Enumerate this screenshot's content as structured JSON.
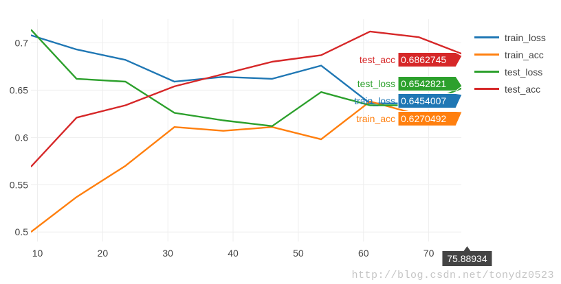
{
  "chart_data": {
    "type": "line",
    "xlim": [
      9,
      75
    ],
    "ylim": [
      0.49,
      0.725
    ],
    "x_ticks": [
      10,
      20,
      30,
      40,
      50,
      60,
      70
    ],
    "y_ticks": [
      0.5,
      0.55,
      0.6,
      0.65,
      0.7
    ],
    "y_tick_labels": [
      "0.5",
      "0.55",
      "0.6",
      "0.65",
      "0.7"
    ],
    "grid": true,
    "legend_position": "right",
    "series": [
      {
        "name": "train_loss",
        "color": "#1f77b4",
        "x": [
          9,
          16,
          23.5,
          31,
          38.5,
          46,
          53.5,
          61,
          68.5,
          75.89
        ],
        "y": [
          0.708,
          0.693,
          0.682,
          0.659,
          0.664,
          0.662,
          0.676,
          0.636,
          0.636,
          0.6454007
        ]
      },
      {
        "name": "train_acc",
        "color": "#ff7f0e",
        "x": [
          9,
          16,
          23.5,
          31,
          38.5,
          46,
          53.5,
          61,
          68.5,
          75.89
        ],
        "y": [
          0.5,
          0.537,
          0.57,
          0.611,
          0.607,
          0.611,
          0.598,
          0.638,
          0.624,
          0.6270492
        ]
      },
      {
        "name": "test_loss",
        "color": "#2ca02c",
        "x": [
          9,
          16,
          23.5,
          31,
          38.5,
          46,
          53.5,
          61,
          68.5,
          75.89
        ],
        "y": [
          0.714,
          0.662,
          0.659,
          0.626,
          0.618,
          0.612,
          0.648,
          0.634,
          0.634,
          0.6542821
        ]
      },
      {
        "name": "test_acc",
        "color": "#d62728",
        "x": [
          9,
          16,
          23.5,
          31,
          38.5,
          46,
          53.5,
          61,
          68.5,
          75.89
        ],
        "y": [
          0.569,
          0.621,
          0.634,
          0.654,
          0.667,
          0.68,
          0.687,
          0.712,
          0.706,
          0.6862745
        ]
      }
    ],
    "hover": {
      "x_label": "75.88934",
      "labels": [
        {
          "series": "test_acc",
          "value": "0.6862745"
        },
        {
          "series": "test_loss",
          "value": "0.6542821"
        },
        {
          "series": "train_loss",
          "value": "0.6454007"
        },
        {
          "series": "train_acc",
          "value": "0.6270492"
        }
      ]
    }
  },
  "legend": {
    "items": [
      {
        "label": "train_loss",
        "color": "#1f77b4"
      },
      {
        "label": "train_acc",
        "color": "#ff7f0e"
      },
      {
        "label": "test_loss",
        "color": "#2ca02c"
      },
      {
        "label": "test_acc",
        "color": "#d62728"
      }
    ]
  },
  "watermark": {
    "text": "http://blog.csdn.net/tonydz0523"
  }
}
